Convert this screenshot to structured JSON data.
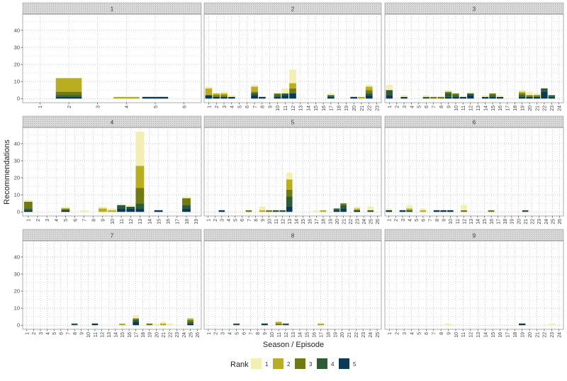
{
  "chart_data": {
    "type": "bar",
    "stacked": true,
    "facet_by": "Season",
    "xlabel": "Season / Episode",
    "ylabel": "Recommendations",
    "ylim": [
      0,
      47
    ],
    "y_ticks": [
      0,
      10,
      20,
      30,
      40
    ],
    "grid": true,
    "legend": {
      "title": "Rank",
      "position": "bottom",
      "entries": [
        "1",
        "2",
        "3",
        "4",
        "5"
      ]
    },
    "colors": [
      "#f3eeb2",
      "#b9ae22",
      "#717a12",
      "#2c5b34",
      "#0b3a55"
    ],
    "stack_order_note_values": "each episode value is [rank1, rank2, rank3, rank4, rank5]",
    "facets": [
      {
        "season": "1",
        "episodes": 6,
        "data": {
          "2": [
            0,
            8,
            2,
            1,
            1
          ],
          "4": [
            0,
            1,
            0,
            0,
            0
          ],
          "5": [
            0,
            0,
            0,
            0,
            1
          ]
        }
      },
      {
        "season": "2",
        "episodes": 23,
        "data": {
          "1": [
            1,
            4,
            0,
            0,
            2
          ],
          "2": [
            0,
            1,
            1,
            0,
            1
          ],
          "3": [
            1,
            1,
            1,
            0,
            1
          ],
          "4": [
            1,
            0,
            0,
            0,
            1
          ],
          "7": [
            1,
            3,
            1,
            1,
            2
          ],
          "8": [
            0,
            0,
            0,
            0,
            1
          ],
          "10": [
            0,
            0,
            1,
            1,
            1
          ],
          "11": [
            3,
            0,
            0,
            1,
            2
          ],
          "12": [
            8,
            3,
            3,
            0,
            3
          ],
          "17": [
            1,
            0,
            0,
            1,
            1
          ],
          "20": [
            0,
            0,
            0,
            0,
            1
          ],
          "21": [
            0,
            1,
            0,
            0,
            0
          ],
          "22": [
            1,
            2,
            2,
            1,
            2
          ]
        }
      },
      {
        "season": "3",
        "episodes": 24,
        "data": {
          "1": [
            3,
            0,
            0,
            3,
            2
          ],
          "3": [
            1,
            0,
            0,
            0,
            1
          ],
          "6": [
            1,
            0,
            0,
            1,
            0
          ],
          "7": [
            0,
            0,
            1,
            0,
            0
          ],
          "8": [
            0,
            0,
            1,
            0,
            0
          ],
          "9": [
            1,
            0,
            1,
            2,
            1
          ],
          "10": [
            0,
            0,
            1,
            1,
            1
          ],
          "11": [
            0,
            0,
            0,
            0,
            1
          ],
          "12": [
            1,
            0,
            0,
            1,
            2
          ],
          "14": [
            1,
            0,
            0,
            0,
            1
          ],
          "15": [
            0,
            0,
            1,
            1,
            1
          ],
          "16": [
            1,
            0,
            0,
            0,
            1
          ],
          "19": [
            1,
            1,
            1,
            1,
            1
          ],
          "20": [
            2,
            0,
            1,
            0,
            1
          ],
          "21": [
            1,
            0,
            1,
            0,
            1
          ],
          "22": [
            0,
            0,
            0,
            2,
            4
          ],
          "23": [
            0,
            0,
            0,
            1,
            1
          ]
        }
      },
      {
        "season": "4",
        "episodes": 19,
        "data": {
          "1": [
            1,
            0,
            4,
            1,
            1
          ],
          "5": [
            1,
            0,
            1,
            0,
            1
          ],
          "7": [
            1,
            0,
            0,
            0,
            0
          ],
          "9": [
            1,
            2,
            0,
            0,
            0
          ],
          "10": [
            1,
            1,
            0,
            0,
            0
          ],
          "11": [
            0,
            0,
            0,
            2,
            2
          ],
          "12": [
            1,
            0,
            0,
            1,
            2
          ],
          "13": [
            20,
            13,
            9,
            3,
            2
          ],
          "15": [
            0,
            0,
            0,
            0,
            1
          ],
          "18": [
            1,
            0,
            4,
            2,
            2
          ]
        }
      },
      {
        "season": "5",
        "episodes": 26,
        "data": {
          "3": [
            0,
            0,
            0,
            0,
            1
          ],
          "7": [
            0,
            0,
            1,
            0,
            0
          ],
          "9": [
            2,
            1,
            0,
            0,
            0
          ],
          "10": [
            0,
            0,
            1,
            0,
            0
          ],
          "11": [
            0,
            0,
            0,
            1,
            0
          ],
          "12": [
            0,
            0,
            0,
            1,
            0
          ],
          "13": [
            4,
            6,
            4,
            6,
            3
          ],
          "17": [
            1,
            0,
            0,
            0,
            0
          ],
          "18": [
            0,
            1,
            0,
            0,
            0
          ],
          "20": [
            0,
            0,
            0,
            1,
            1
          ],
          "21": [
            0,
            0,
            1,
            2,
            2
          ],
          "23": [
            1,
            1,
            0,
            0,
            1
          ],
          "25": [
            2,
            0,
            0,
            1,
            0
          ]
        }
      },
      {
        "season": "6",
        "episodes": 26,
        "data": {
          "1": [
            1,
            0,
            0,
            0,
            1
          ],
          "3": [
            0,
            0,
            0,
            0,
            1
          ],
          "4": [
            2,
            1,
            0,
            1,
            0
          ],
          "6": [
            1,
            1,
            0,
            0,
            0
          ],
          "8": [
            0,
            0,
            0,
            0,
            1
          ],
          "9": [
            0,
            0,
            0,
            0,
            1
          ],
          "10": [
            0,
            0,
            0,
            0,
            1
          ],
          "12": [
            3,
            0,
            1,
            0,
            0
          ],
          "16": [
            0,
            0,
            1,
            0,
            0
          ],
          "21": [
            0,
            0,
            0,
            1,
            0
          ]
        }
      },
      {
        "season": "7",
        "episodes": 26,
        "data": {
          "8": [
            0,
            0,
            0,
            1,
            0
          ],
          "11": [
            0,
            0,
            0,
            0,
            1
          ],
          "15": [
            0,
            1,
            0,
            0,
            0
          ],
          "17": [
            2,
            0,
            1,
            1,
            2
          ],
          "19": [
            0,
            0,
            1,
            0,
            0
          ],
          "20": [
            1,
            0,
            0,
            0,
            0
          ],
          "21": [
            1,
            1,
            0,
            0,
            0
          ],
          "22": [
            1,
            0,
            0,
            0,
            0
          ],
          "25": [
            0,
            1,
            1,
            1,
            1
          ]
        }
      },
      {
        "season": "8",
        "episodes": 25,
        "data": {
          "5": [
            0,
            0,
            0,
            1,
            0
          ],
          "9": [
            0,
            0,
            0,
            0,
            1
          ],
          "11": [
            0,
            1,
            1,
            0,
            0
          ],
          "12": [
            0,
            0,
            0,
            1,
            0
          ],
          "17": [
            0,
            1,
            0,
            0,
            0
          ]
        }
      },
      {
        "season": "9",
        "episodes": 24,
        "data": {
          "9": [
            1,
            0,
            0,
            0,
            0
          ],
          "19": [
            0,
            0,
            0,
            0,
            1
          ],
          "23": [
            1,
            0,
            0,
            0,
            0
          ]
        }
      }
    ]
  }
}
